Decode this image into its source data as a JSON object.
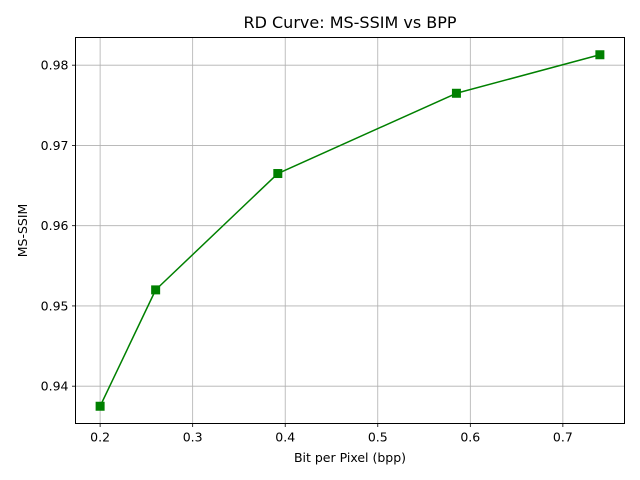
{
  "chart_data": {
    "type": "line",
    "title": "RD Curve: MS-SSIM vs BPP",
    "xlabel": "Bit per Pixel (bpp)",
    "ylabel": "MS-SSIM",
    "xlim": [
      0.1734,
      0.7666
    ],
    "ylim": [
      0.93535,
      0.98345
    ],
    "xticks": [
      0.2,
      0.3,
      0.4,
      0.5,
      0.6,
      0.7
    ],
    "xtick_labels": [
      "0.2",
      "0.3",
      "0.4",
      "0.5",
      "0.6",
      "0.7"
    ],
    "yticks": [
      0.94,
      0.95,
      0.96,
      0.97,
      0.98
    ],
    "ytick_labels": [
      "0.94",
      "0.95",
      "0.96",
      "0.97",
      "0.98"
    ],
    "grid": true,
    "series": [
      {
        "x": [
          0.2,
          0.26,
          0.392,
          0.585,
          0.74
        ],
        "y": [
          0.9375,
          0.952,
          0.9665,
          0.9765,
          0.9813
        ],
        "color": "#008000",
        "marker": "square"
      }
    ]
  }
}
